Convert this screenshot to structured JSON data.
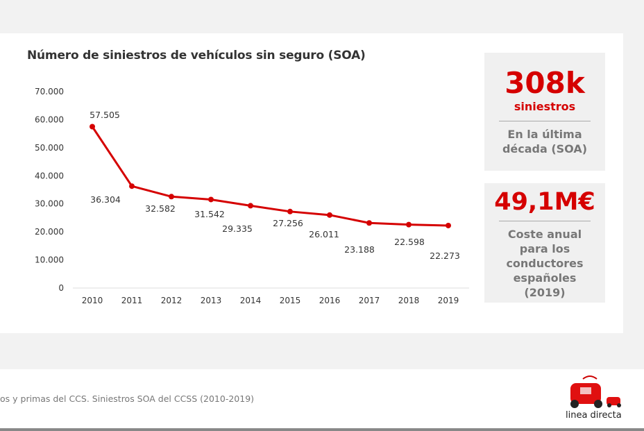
{
  "chart_data": {
    "type": "line",
    "title": "Número de siniestros de vehículos sin seguro (SOA)",
    "categories": [
      "2010",
      "2011",
      "2012",
      "2013",
      "2014",
      "2015",
      "2016",
      "2017",
      "2018",
      "2019"
    ],
    "values": [
      57505,
      36304,
      32582,
      31542,
      29335,
      27256,
      26011,
      23188,
      22598,
      22273
    ],
    "data_labels": [
      "57.505",
      "36.304",
      "32.582",
      "31.542",
      "29.335",
      "27.256",
      "26.011",
      "23.188",
      "22.598",
      "22.273"
    ],
    "ylim": [
      0,
      70000
    ],
    "yticks": [
      "0",
      "10.000",
      "20.000",
      "30.000",
      "40.000",
      "50.000",
      "60.000",
      "70.000"
    ],
    "grid": false,
    "xlabel": "",
    "ylabel": "",
    "line_color": "#d50000"
  },
  "cards": [
    {
      "value": "308k",
      "unit": "siniestros",
      "desc": [
        "En la última",
        "década (SOA)"
      ]
    },
    {
      "value": "49,1M€",
      "desc": [
        "Coste anual",
        "para los",
        "conductores",
        "españoles",
        "(2019)"
      ]
    }
  ],
  "footer": {
    "source": "os y primas del CCS. Siniestros SOA del CCSS (2010-2019)",
    "logo_text": "linea directa"
  }
}
